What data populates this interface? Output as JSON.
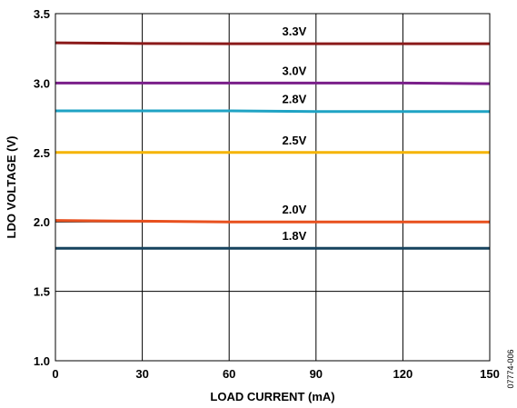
{
  "chart_data": {
    "type": "line",
    "xlabel": "LOAD CURRENT (mA)",
    "ylabel": "LDO VOLTAGE (V)",
    "xlim": [
      0,
      150
    ],
    "ylim": [
      1.0,
      3.5
    ],
    "x_ticks": [
      "0",
      "30",
      "60",
      "90",
      "120",
      "150"
    ],
    "y_ticks": [
      "1.0",
      "1.5",
      "2.0",
      "2.5",
      "3.0",
      "3.5"
    ],
    "grid": true,
    "series": [
      {
        "name": "3.3V",
        "color": "#8b1a1a",
        "x": [
          0,
          30,
          60,
          90,
          120,
          150
        ],
        "values": [
          3.29,
          3.285,
          3.283,
          3.283,
          3.283,
          3.283
        ]
      },
      {
        "name": "3.0V",
        "color": "#7a1f8a",
        "x": [
          0,
          30,
          60,
          90,
          120,
          150
        ],
        "values": [
          3.0,
          3.0,
          3.0,
          3.0,
          3.0,
          2.995
        ]
      },
      {
        "name": "2.8V",
        "color": "#1fa3c4",
        "x": [
          0,
          30,
          60,
          90,
          120,
          150
        ],
        "values": [
          2.8,
          2.8,
          2.8,
          2.795,
          2.795,
          2.795
        ]
      },
      {
        "name": "2.5V",
        "color": "#f5b400",
        "x": [
          0,
          30,
          60,
          90,
          120,
          150
        ],
        "values": [
          2.5,
          2.5,
          2.5,
          2.5,
          2.5,
          2.5
        ]
      },
      {
        "name": "2.0V",
        "color": "#e8501e",
        "x": [
          0,
          30,
          60,
          90,
          120,
          150
        ],
        "values": [
          2.01,
          2.005,
          2.0,
          2.0,
          2.0,
          2.0
        ]
      },
      {
        "name": "1.8V",
        "color": "#17435e",
        "x": [
          0,
          30,
          60,
          90,
          120,
          150
        ],
        "values": [
          1.81,
          1.81,
          1.81,
          1.81,
          1.81,
          1.81
        ]
      }
    ],
    "figure_id": "07774-006"
  }
}
